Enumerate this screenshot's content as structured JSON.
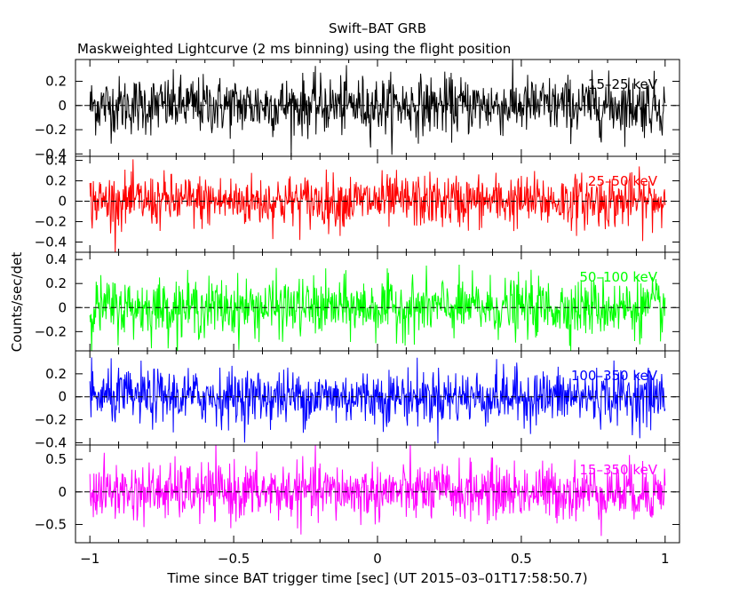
{
  "chart_data": {
    "type": "line",
    "title": "Swift–BAT GRB",
    "subtitle": "Maskweighted Lightcurve (2 ms binning) using the flight position",
    "xlabel": "Time since BAT trigger time [sec] (UT 2015–03–01T17:58:50.7)",
    "ylabel": "Counts/sec/det",
    "xlim": [
      -1.05,
      1.05
    ],
    "x_ticks": [
      -1,
      -0.5,
      0,
      0.5,
      1
    ],
    "x_tick_labels": [
      "−1",
      "−0.5",
      "0",
      "0.5",
      "1"
    ],
    "zero_line": "dashed",
    "panels": [
      {
        "name": "15–25 keV",
        "color": "#000000",
        "ylim": [
          -0.42,
          0.38
        ],
        "y_ticks": [
          -0.4,
          -0.2,
          0,
          0.2
        ],
        "y_tick_labels": [
          "−0.4",
          "−0.2",
          "0",
          "0.2"
        ],
        "noise_amplitude": 0.12,
        "x_range": [
          -1,
          1
        ],
        "bin_width": 0.002
      },
      {
        "name": "25–50 keV",
        "color": "#ff0000",
        "ylim": [
          -0.5,
          0.44
        ],
        "y_ticks": [
          -0.4,
          -0.2,
          0,
          0.2,
          0.4
        ],
        "y_tick_labels": [
          "−0.4",
          "−0.2",
          "0",
          "0.2",
          "0.4"
        ],
        "noise_amplitude": 0.13,
        "x_range": [
          -1,
          1
        ],
        "bin_width": 0.002
      },
      {
        "name": "50–100 keV",
        "color": "#00ff00",
        "ylim": [
          -0.36,
          0.46
        ],
        "y_ticks": [
          -0.2,
          0,
          0.2,
          0.4
        ],
        "y_tick_labels": [
          "−0.2",
          "0",
          "0.2",
          "0.4"
        ],
        "noise_amplitude": 0.12,
        "x_range": [
          -1,
          1
        ],
        "bin_width": 0.002
      },
      {
        "name": "100–350 keV",
        "color": "#0000ff",
        "ylim": [
          -0.42,
          0.4
        ],
        "y_ticks": [
          -0.4,
          -0.2,
          0,
          0.2
        ],
        "y_tick_labels": [
          "−0.4",
          "−0.2",
          "0",
          "0.2"
        ],
        "noise_amplitude": 0.12,
        "x_range": [
          -1,
          1
        ],
        "bin_width": 0.002
      },
      {
        "name": "15–350 keV",
        "color": "#ff00ff",
        "ylim": [
          -0.78,
          0.72
        ],
        "y_ticks": [
          -0.5,
          0,
          0.5
        ],
        "y_tick_labels": [
          "−0.5",
          "0",
          "0.5"
        ],
        "noise_amplitude": 0.22,
        "x_range": [
          -1,
          1
        ],
        "bin_width": 0.002
      }
    ]
  }
}
